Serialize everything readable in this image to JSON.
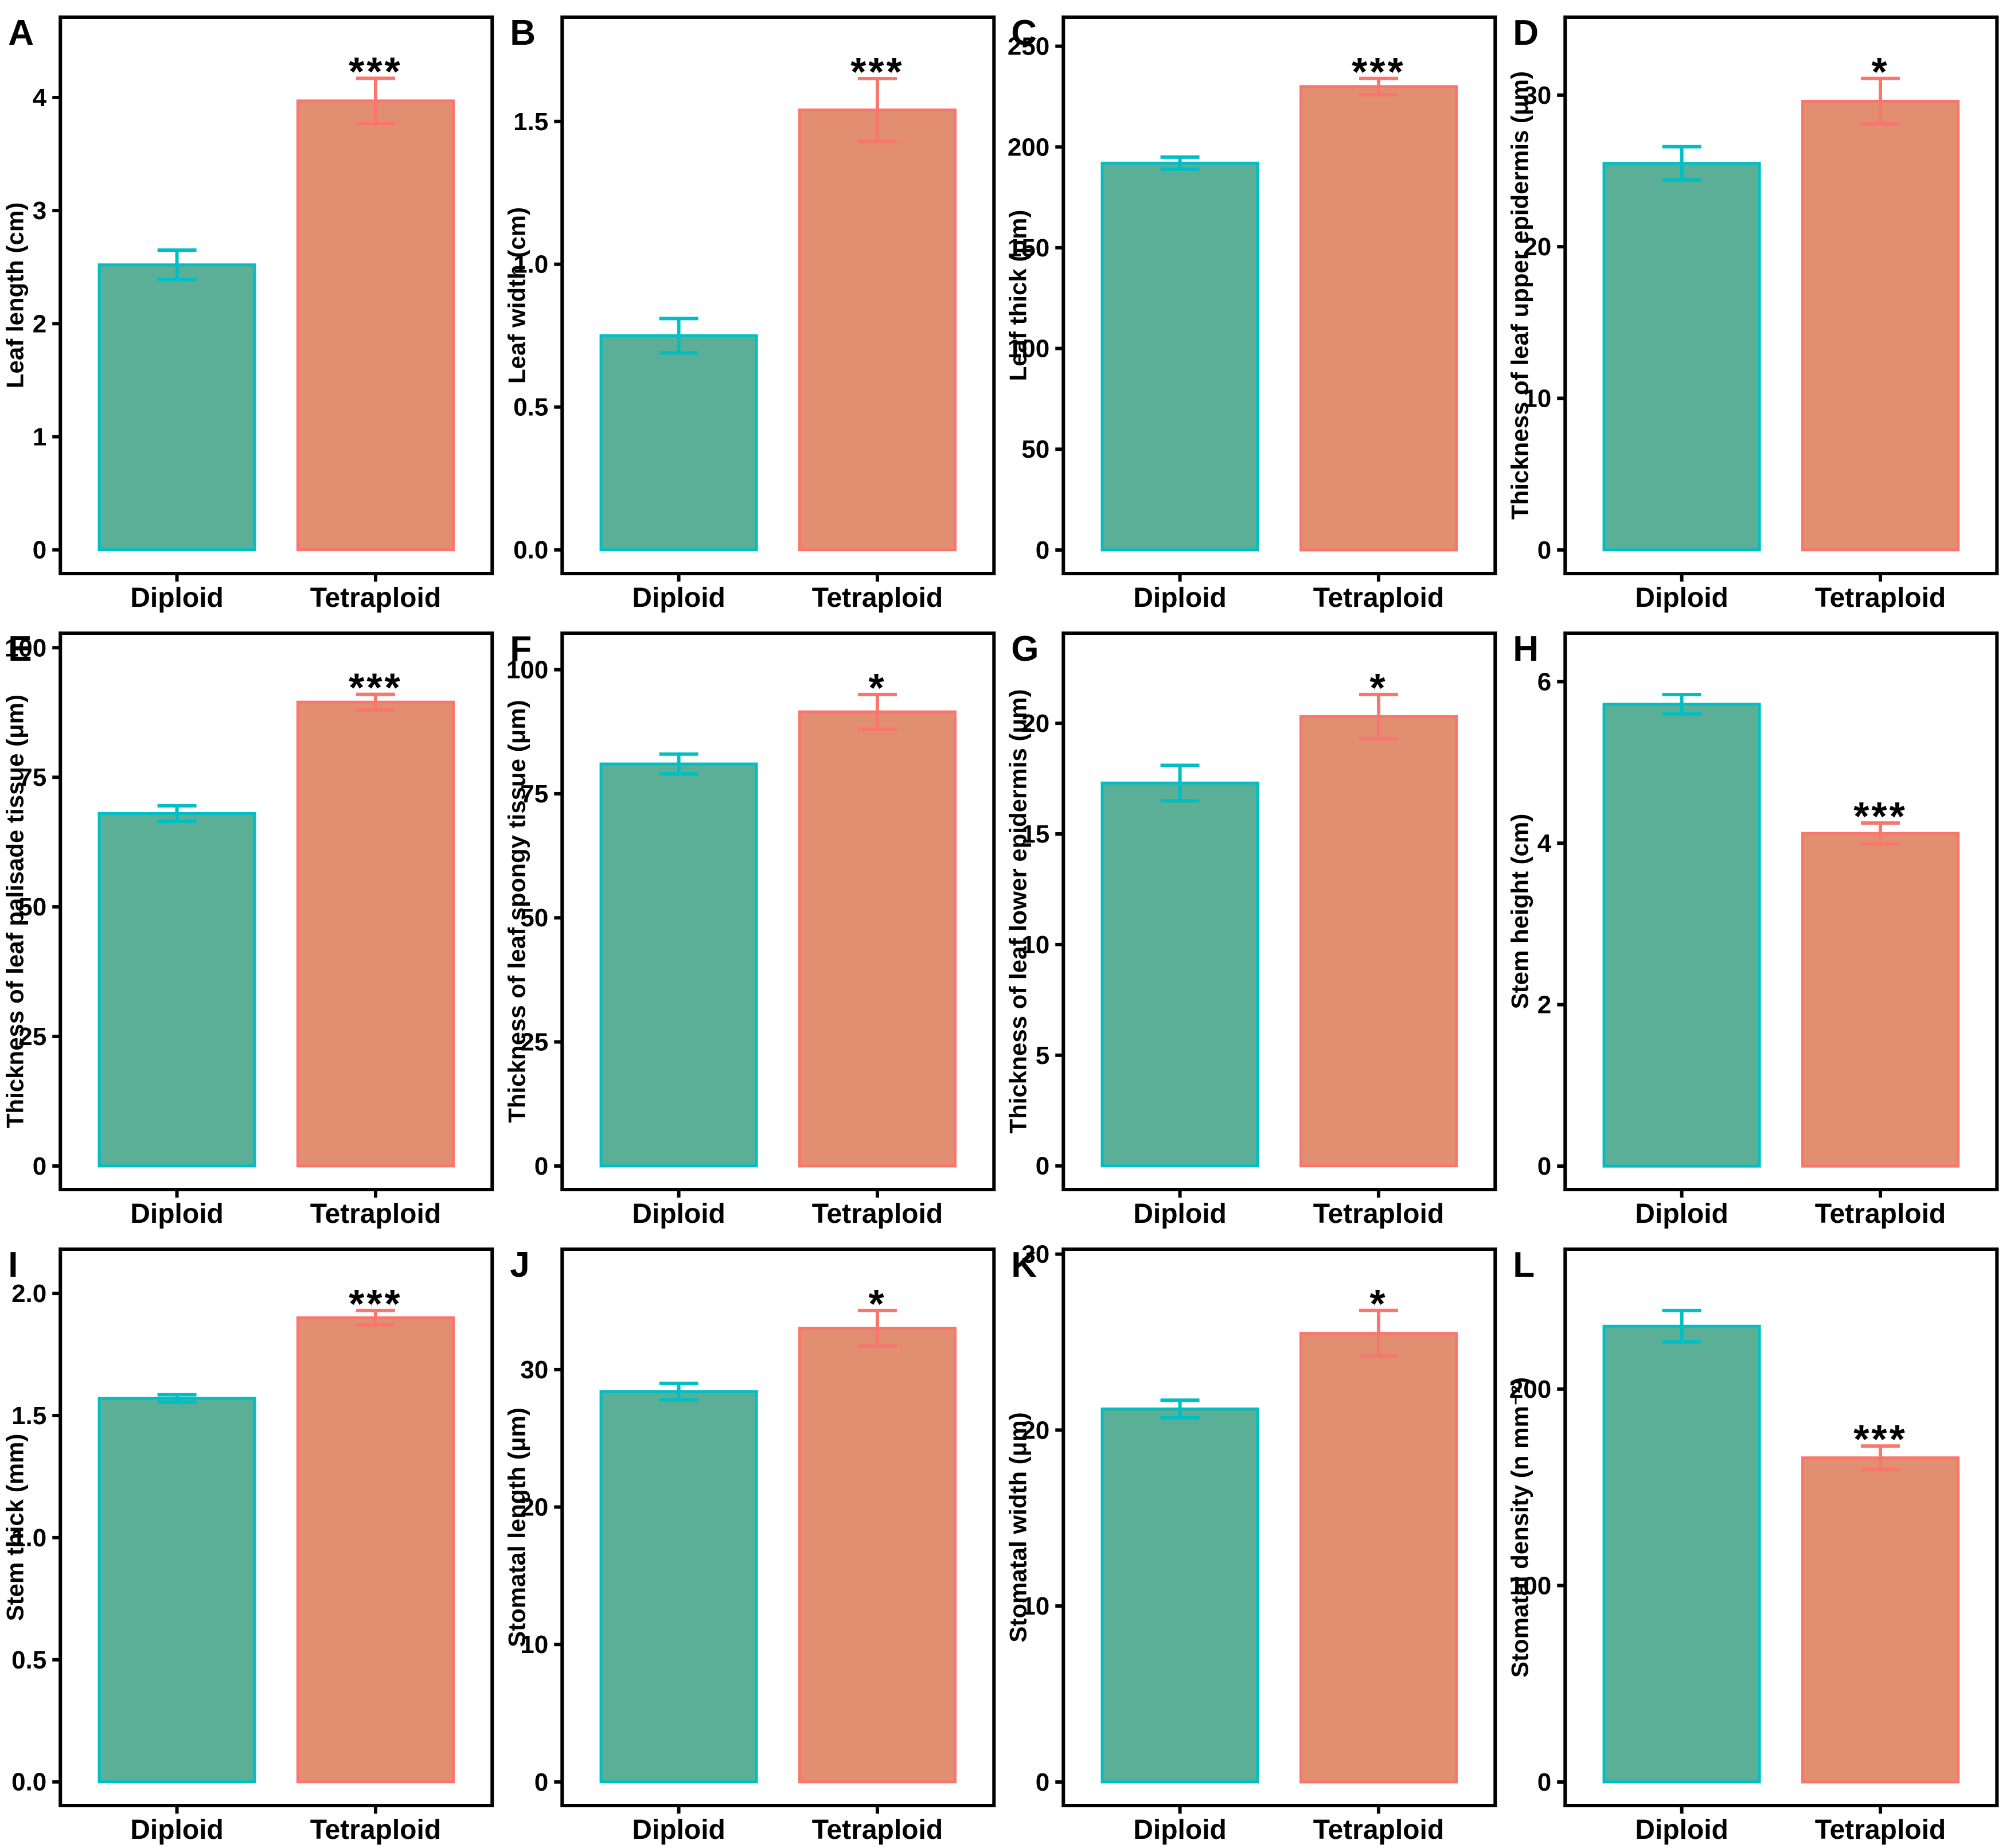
{
  "figure": {
    "groups": [
      "Diploid",
      "Tetraploid"
    ],
    "colors": {
      "diploid_fill": "#5CAF97",
      "diploid_border": "#00BFC4",
      "tetraploid_fill": "#E28E70",
      "tetraploid_border": "#F8766D",
      "axis": "#000000",
      "background": "#FFFFFF",
      "significance_star": "#000000"
    }
  },
  "chart_data": [
    {
      "type": "bar",
      "panel": "A",
      "ylabel": "Leaf length (cm)",
      "xlabel": "",
      "categories": [
        "Diploid",
        "Tetraploid"
      ],
      "values": [
        2.52,
        3.97
      ],
      "errors": [
        0.13,
        0.2
      ],
      "significance": "***",
      "significance_on": "Tetraploid",
      "yticks": [
        "0",
        "1",
        "2",
        "3",
        "4"
      ],
      "ylim": [
        -0.21,
        4.71
      ],
      "grid": false
    },
    {
      "type": "bar",
      "panel": "B",
      "ylabel": "Leaf width (cm)",
      "xlabel": "",
      "categories": [
        "Diploid",
        "Tetraploid"
      ],
      "values": [
        0.75,
        1.54
      ],
      "errors": [
        0.06,
        0.11
      ],
      "significance": "***",
      "significance_on": "Tetraploid",
      "yticks": [
        "0.0",
        "0.5",
        "1.0",
        "1.5"
      ],
      "ylim": [
        -0.083,
        1.865
      ],
      "grid": false
    },
    {
      "type": "bar",
      "panel": "C",
      "ylabel": "Leaf thick (μm)",
      "xlabel": "",
      "categories": [
        "Diploid",
        "Tetraploid"
      ],
      "values": [
        192,
        230
      ],
      "errors": [
        3,
        4
      ],
      "significance": "***",
      "significance_on": "Tetraploid",
      "yticks": [
        "0",
        "50",
        "100",
        "150",
        "200",
        "250"
      ],
      "ylim": [
        -11.7,
        264.4
      ],
      "grid": false
    },
    {
      "type": "bar",
      "panel": "D",
      "ylabel": "Thickness of leaf upper epidermis (μm)",
      "xlabel": "",
      "categories": [
        "Diploid",
        "Tetraploid"
      ],
      "values": [
        25.5,
        29.6
      ],
      "errors": [
        1.1,
        1.5
      ],
      "significance": "*",
      "significance_on": "Tetraploid",
      "yticks": [
        "0",
        "10",
        "20",
        "30"
      ],
      "ylim": [
        -1.56,
        35.14
      ],
      "grid": false
    },
    {
      "type": "bar",
      "panel": "E",
      "ylabel": "Thickness of leaf palisade tissue (μm)",
      "xlabel": "",
      "categories": [
        "Diploid",
        "Tetraploid"
      ],
      "values": [
        68,
        89.5
      ],
      "errors": [
        1.5,
        1.5
      ],
      "significance": "***",
      "significance_on": "Tetraploid",
      "yticks": [
        "0",
        "25",
        "50",
        "75",
        "100"
      ],
      "ylim": [
        -4.55,
        102.8
      ],
      "grid": false
    },
    {
      "type": "bar",
      "panel": "F",
      "ylabel": "Thickness of leaf spongy tissue (μm)",
      "xlabel": "",
      "categories": [
        "Diploid",
        "Tetraploid"
      ],
      "values": [
        81,
        91.5
      ],
      "errors": [
        2,
        3.5
      ],
      "significance": "*",
      "significance_on": "Tetraploid",
      "yticks": [
        "0",
        "25",
        "50",
        "75",
        "100"
      ],
      "ylim": [
        -4.75,
        107.35
      ],
      "grid": false
    },
    {
      "type": "bar",
      "panel": "G",
      "ylabel": "Thickness of leaf lower epidermis (μm)",
      "xlabel": "",
      "categories": [
        "Diploid",
        "Tetraploid"
      ],
      "values": [
        17.3,
        20.3
      ],
      "errors": [
        0.8,
        1.0
      ],
      "significance": "*",
      "significance_on": "Tetraploid",
      "yticks": [
        "0",
        "5",
        "10",
        "15",
        "20"
      ],
      "ylim": [
        -1.07,
        24.07
      ],
      "grid": false
    },
    {
      "type": "bar",
      "panel": "H",
      "ylabel": "Stem height (cm)",
      "xlabel": "",
      "categories": [
        "Diploid",
        "Tetraploid"
      ],
      "values": [
        5.72,
        4.12
      ],
      "errors": [
        0.12,
        0.13
      ],
      "significance": "***",
      "significance_on": "Tetraploid",
      "yticks": [
        "0",
        "2",
        "4",
        "6"
      ],
      "ylim": [
        -0.29,
        6.6
      ],
      "grid": false
    },
    {
      "type": "bar",
      "panel": "I",
      "ylabel": "Stem thick (mm)",
      "xlabel": "",
      "categories": [
        "Diploid",
        "Tetraploid"
      ],
      "values": [
        1.57,
        1.9
      ],
      "errors": [
        0.015,
        0.03
      ],
      "significance": "***",
      "significance_on": "Tetraploid",
      "yticks": [
        "0.0",
        "0.5",
        "1.0",
        "1.5",
        "2.0"
      ],
      "ylim": [
        -0.097,
        2.181
      ],
      "grid": false
    },
    {
      "type": "bar",
      "panel": "J",
      "ylabel": "Stomatal length (μm)",
      "xlabel": "",
      "categories": [
        "Diploid",
        "Tetraploid"
      ],
      "values": [
        28.4,
        33.0
      ],
      "errors": [
        0.6,
        1.3
      ],
      "significance": "*",
      "significance_on": "Tetraploid",
      "yticks": [
        "0",
        "10",
        "20",
        "30"
      ],
      "ylim": [
        -1.72,
        38.76
      ],
      "grid": false
    },
    {
      "type": "bar",
      "panel": "K",
      "ylabel": "Stomatal width (μm)",
      "xlabel": "",
      "categories": [
        "Diploid",
        "Tetraploid"
      ],
      "values": [
        21.2,
        25.5
      ],
      "errors": [
        0.5,
        1.3
      ],
      "significance": "*",
      "significance_on": "Tetraploid",
      "yticks": [
        "0",
        "10",
        "20",
        "30"
      ],
      "ylim": [
        -1.34,
        30.28
      ],
      "grid": false
    },
    {
      "type": "bar",
      "panel": "L",
      "ylabel": "Stomatal density (n mm⁻²)",
      "xlabel": "",
      "categories": [
        "Diploid",
        "Tetraploid"
      ],
      "values": [
        232,
        165
      ],
      "errors": [
        8,
        6
      ],
      "significance": "***",
      "significance_on": "Tetraploid",
      "yticks": [
        "0",
        "100",
        "200"
      ],
      "ylim": [
        -12.0,
        271.2
      ],
      "grid": false
    }
  ]
}
